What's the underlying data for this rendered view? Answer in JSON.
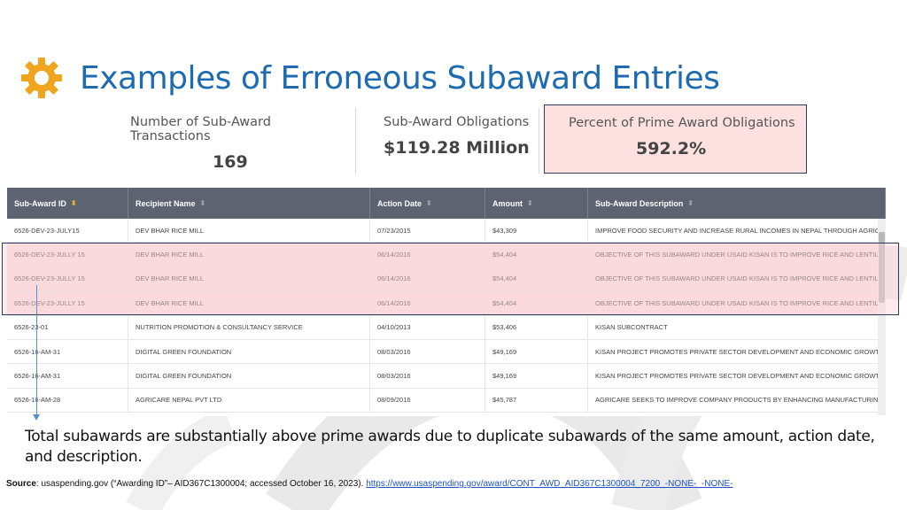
{
  "title": "Examples of Erroneous Subaward Entries",
  "colors": {
    "accent": "#1f6bb0",
    "gear": "#f0a51e",
    "highlight": "#fde0e0",
    "header": "#5d6370"
  },
  "stats": [
    {
      "label": "Number of Sub-Award Transactions",
      "value": "169"
    },
    {
      "label": "Sub-Award Obligations",
      "value": "$119.28 Million"
    },
    {
      "label": "Percent of Prime Award Obligations",
      "value": "592.2%"
    }
  ],
  "table": {
    "headers": [
      "Sub-Award ID",
      "Recipient Name",
      "Action Date",
      "Amount",
      "Sub-Award Description"
    ],
    "rows": [
      [
        "6526-DEV-23-JULY15",
        "DEV BHAR RICE MILL",
        "07/23/2015",
        "$43,309",
        "IMPROVE FOOD SECURITY AND INCREASE RURAL INCOMES IN NEPAL THROUGH AGRICULT..."
      ],
      [
        "6526-DEV-23-JULLY 15",
        "DEV BHAR RICE MILL",
        "06/14/2016",
        "$54,404",
        "OBJECTIVE OF THIS SUBAWARD UNDER USAID KISAN IS TO IMPROVE RICE AND LENTIL FA..."
      ],
      [
        "6526-DEV-23-JULLY 15",
        "DEV BHAR RICE MILL",
        "06/14/2016",
        "$54,404",
        "OBJECTIVE OF THIS SUBAWARD UNDER USAID KISAN IS TO IMPROVE RICE AND LENTIL FA..."
      ],
      [
        "6526-DEV-23-JULLY 15",
        "DEV BHAR RICE MILL",
        "06/14/2016",
        "$54,404",
        "OBJECTIVE OF THIS SUBAWARD UNDER USAID KISAN IS TO IMPROVE RICE AND LENTIL FA..."
      ],
      [
        "6526-23-01",
        "NUTRITION PROMOTION & CONSULTANCY SERVICE",
        "04/10/2013",
        "$53,406",
        "KISAN SUBCONTRACT"
      ],
      [
        "6526-16-AM-31",
        "DIGITAL GREEN FOUNDATION",
        "08/03/2016",
        "$49,169",
        "KISAN PROJECT PROMOTES PRIVATE SECTOR DEVELOPMENT AND ECONOMIC GROWTH IN..."
      ],
      [
        "6526-16-AM-31",
        "DIGITAL GREEN FOUNDATION",
        "08/03/2016",
        "$49,169",
        "KISAN PROJECT PROMOTES PRIVATE SECTOR DEVELOPMENT AND ECONOMIC GROWTH IN..."
      ],
      [
        "6526-16-AM-28",
        "AGRICARE NEPAL PVT LTD",
        "08/09/2016",
        "$45,787",
        "AGRICARE SEEKS TO IMPROVE COMPANY PRODUCTS BY ENHANCING MANUFACTURING CA..."
      ]
    ]
  },
  "caption": "Total subawards are substantially above prime awards due to duplicate subawards of the same amount, action date, and description.",
  "source": {
    "label": "Source",
    "text": ": usaspending.gov (“Awarding ID”– AID367C1300004; accessed October 16, 2023).",
    "link": "https://www.usaspending.gov/award/CONT_AWD_AID367C1300004_7200_-NONE-_-NONE-"
  }
}
